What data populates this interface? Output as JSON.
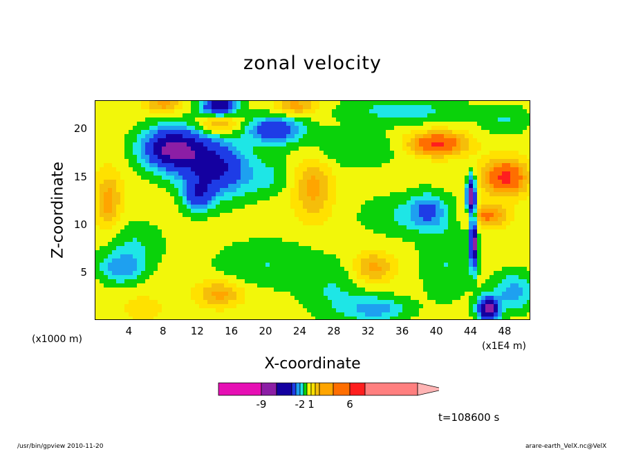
{
  "chart_data": {
    "type": "heatmap",
    "title": "zonal velocity",
    "xlabel": "X-coordinate",
    "ylabel": "Z-coordinate",
    "x_unit_left": "(x1000 m)",
    "x_unit_right": "(x1E4 m)",
    "xticks": [
      "4",
      "8",
      "12",
      "16",
      "20",
      "24",
      "28",
      "32",
      "36",
      "40",
      "44",
      "48"
    ],
    "xtick_values": [
      4,
      8,
      12,
      16,
      20,
      24,
      28,
      32,
      36,
      40,
      44,
      48
    ],
    "yticks": [
      "5",
      "10",
      "15",
      "20"
    ],
    "ytick_values": [
      5,
      10,
      15,
      20
    ],
    "xlim": [
      0,
      51
    ],
    "ylim": [
      0,
      23
    ],
    "colorbar": {
      "levels": [
        -13,
        -9,
        -7,
        -5,
        -3,
        -2,
        -1,
        0,
        1,
        2,
        3,
        4,
        6,
        8,
        16
      ],
      "labels": [
        "-9",
        "-2",
        "1",
        "6"
      ],
      "label_values": [
        -9,
        -2,
        1,
        6
      ],
      "colors": [
        "#e60fb4",
        "#8c1ea5",
        "#1400a0",
        "#1e3ce6",
        "#1ea0f0",
        "#1ee6e6",
        "#0ad20a",
        "#f2f70a",
        "#ffe100",
        "#f5be0a",
        "#ffa500",
        "#ff6e00",
        "#ff1e1e",
        "#ff7f7f",
        "#ffb4b4"
      ]
    },
    "fields": {
      "background": 0.5,
      "blobs": [
        {
          "x": 9,
          "y": 18,
          "rx": 3.5,
          "ry": 2.2,
          "v": -8
        },
        {
          "x": 14,
          "y": 16,
          "rx": 3.8,
          "ry": 3.0,
          "v": -6
        },
        {
          "x": 12,
          "y": 13,
          "rx": 1.6,
          "ry": 1.6,
          "v": -4
        },
        {
          "x": 21,
          "y": 20,
          "rx": 3.2,
          "ry": 1.4,
          "v": -5
        },
        {
          "x": 14.5,
          "y": 22.5,
          "rx": 2.0,
          "ry": 1.0,
          "v": -7
        },
        {
          "x": 3,
          "y": 5.5,
          "rx": 2.6,
          "ry": 1.6,
          "v": -3
        },
        {
          "x": 33,
          "y": 1.2,
          "rx": 3.5,
          "ry": 1.3,
          "v": -3
        },
        {
          "x": 39,
          "y": 11.5,
          "rx": 2.2,
          "ry": 1.8,
          "v": -3
        },
        {
          "x": 44,
          "y": 13,
          "rx": 0.5,
          "ry": 2.0,
          "v": -9
        },
        {
          "x": 44.3,
          "y": 8,
          "rx": 0.4,
          "ry": 2.5,
          "v": -9
        },
        {
          "x": 46,
          "y": 1.2,
          "rx": 1.2,
          "ry": 1.2,
          "v": -9
        },
        {
          "x": 49,
          "y": 3,
          "rx": 2.5,
          "ry": 2.0,
          "v": -3
        },
        {
          "x": 36,
          "y": 22,
          "rx": 7.0,
          "ry": 1.4,
          "v": -2
        },
        {
          "x": 14.5,
          "y": 20.5,
          "rx": 2.4,
          "ry": 1.0,
          "v": 3
        },
        {
          "x": 23.5,
          "y": 22.5,
          "rx": 2.2,
          "ry": 1.0,
          "v": 3
        },
        {
          "x": 8,
          "y": 22.6,
          "rx": 2.0,
          "ry": 0.8,
          "v": 3
        },
        {
          "x": 40,
          "y": 18.5,
          "rx": 3.2,
          "ry": 1.2,
          "v": 6
        },
        {
          "x": 48,
          "y": 15,
          "rx": 2.5,
          "ry": 1.8,
          "v": 6
        },
        {
          "x": 46,
          "y": 11,
          "rx": 2.2,
          "ry": 1.1,
          "v": 4
        },
        {
          "x": 1.5,
          "y": 12.5,
          "rx": 1.5,
          "ry": 3.0,
          "v": 3
        },
        {
          "x": 25.5,
          "y": 14,
          "rx": 2.2,
          "ry": 3.2,
          "v": 3
        },
        {
          "x": 32.5,
          "y": 5.5,
          "rx": 2.3,
          "ry": 1.6,
          "v": 3
        },
        {
          "x": 14.5,
          "y": 2.8,
          "rx": 2.6,
          "ry": 1.3,
          "v": 3
        },
        {
          "x": 5.5,
          "y": 1.3,
          "rx": 2.0,
          "ry": 1.2,
          "v": 1.5
        },
        {
          "x": 4.5,
          "y": 8,
          "rx": 3.5,
          "ry": 2.5,
          "v": -1.5
        },
        {
          "x": 20,
          "y": 6,
          "rx": 6.0,
          "ry": 2.5,
          "v": -1.5
        },
        {
          "x": 28,
          "y": 3,
          "rx": 4.0,
          "ry": 3.0,
          "v": -1.5
        },
        {
          "x": 36,
          "y": 11,
          "rx": 5.0,
          "ry": 2.2,
          "v": -1.5
        },
        {
          "x": 41,
          "y": 6,
          "rx": 3.0,
          "ry": 4.0,
          "v": -1.5
        },
        {
          "x": 30,
          "y": 18,
          "rx": 6.0,
          "ry": 2.0,
          "v": -1.5
        },
        {
          "x": 48,
          "y": 21,
          "rx": 3.0,
          "ry": 1.5,
          "v": -1.5
        },
        {
          "x": 20,
          "y": 15,
          "rx": 3.0,
          "ry": 2.0,
          "v": -1.5
        }
      ]
    }
  },
  "time_label": "t=108600 s",
  "footer_left": "/usr/bin/gpview   2010-11-20",
  "footer_right": "arare-earth_VelX.nc@VelX"
}
